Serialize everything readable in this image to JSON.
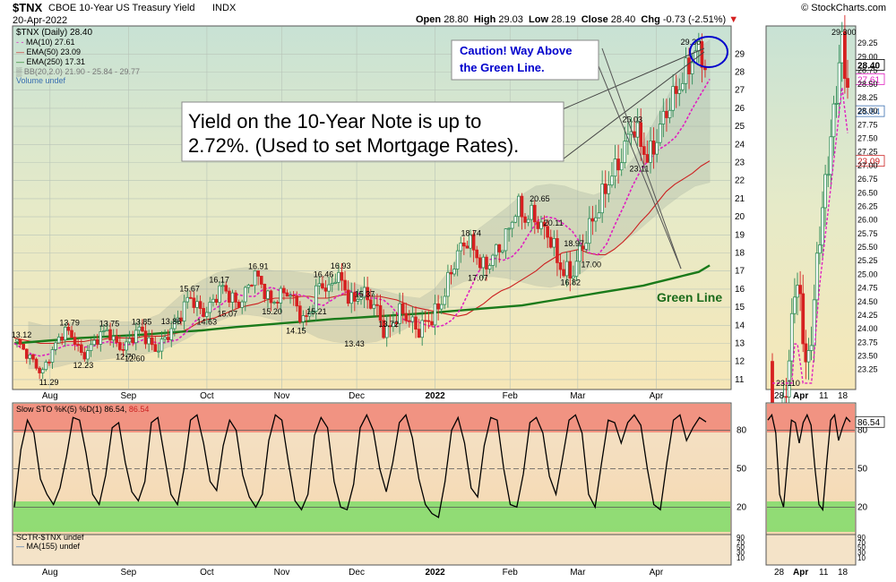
{
  "header": {
    "symbol": "$TNX",
    "name": "CBOE 10-Year US Treasury Yield",
    "exchange": "INDX",
    "copyright": "© StockCharts.com",
    "date": "20-Apr-2022",
    "open_label": "Open",
    "open": "28.80",
    "high_label": "High",
    "high": "29.03",
    "low_label": "Low",
    "low": "28.19",
    "close_label": "Close",
    "close": "28.40",
    "chg_label": "Chg",
    "chg": "-0.73 (-2.51%)"
  },
  "legend": {
    "main": "$TNX (Daily) 28.40",
    "ma10": "MA(10) 27.61",
    "ema50": "EMA(50) 23.09",
    "ema250": "EMA(250) 17.31",
    "bb": "BB(20,2.0) 21.90 - 25.84 - 29.77",
    "volume": "Volume undef"
  },
  "annotations": {
    "caution_line1": "Caution! Way Above",
    "caution_line2": "the Green Line.",
    "yield_line1": "Yield on the 10-Year Note is up to",
    "yield_line2": "2.72%. (Used to set Mortgage Rates).",
    "green_line": "Green Line"
  },
  "colors": {
    "candle_up": "#2e8b57",
    "candle_down": "#d62020",
    "ma10": "#e020c0",
    "ema50": "#cc2020",
    "ema250": "#1a7a1a",
    "annotation_blue": "#0000cc",
    "stoch_over": "#f08070",
    "stoch_under": "#7fdc6a",
    "panel_bg": "#f4e7c4"
  },
  "sto_panel": {
    "label_prefix": "Slow STO %K(5) %D(1) 86.54, ",
    "label_value": "86.54",
    "inset_value": "86.54"
  },
  "sctr_panel": {
    "label": "SCTR-$TNX undef",
    "ma_label": "MA(155) undef"
  },
  "price_tags": {
    "close": "28.40",
    "ma10": "27.61",
    "bb_mid": "25.84",
    "ema50": "23.09"
  },
  "chart_data": {
    "type": "candlestick",
    "ylim": [
      10.5,
      30.5
    ],
    "month_labels": [
      "Aug",
      "Sep",
      "Oct",
      "Nov",
      "Dec",
      "2022",
      "Feb",
      "Mar",
      "Apr"
    ],
    "y_ticks": [
      11,
      12,
      13,
      14,
      15,
      16,
      17,
      18,
      19,
      20,
      21,
      22,
      23,
      24,
      25,
      26,
      27,
      28,
      29
    ],
    "value_labels": [
      "13.12",
      "11.29",
      "13.79",
      "12.23",
      "13.75",
      "12.70",
      "13.85",
      "12.60",
      "13.86",
      "15.67",
      "14.63",
      "16.17",
      "15.07",
      "16.91",
      "15.20",
      "16.46",
      "14.15",
      "16.93",
      "15.21",
      "15.37",
      "13.43",
      "13.72",
      "18.74",
      "17.07",
      "20.65",
      "20.11",
      "18.97",
      "16.82",
      "17.00",
      "25.03",
      "23.11",
      "29.30"
    ],
    "price_path": [
      13.12,
      12.5,
      12.0,
      11.29,
      12.3,
      13.2,
      13.79,
      13.2,
      12.23,
      12.8,
      13.4,
      13.75,
      13.0,
      12.7,
      13.3,
      13.85,
      13.1,
      12.6,
      13.2,
      13.86,
      14.6,
      15.67,
      15.0,
      14.63,
      15.4,
      16.17,
      15.6,
      15.07,
      15.9,
      16.91,
      16.1,
      15.2,
      15.6,
      15.9,
      15.2,
      14.15,
      15.0,
      16.46,
      15.8,
      16.93,
      16.0,
      15.21,
      15.8,
      15.37,
      14.8,
      13.43,
      14.3,
      14.8,
      14.2,
      13.72,
      14.2,
      14.6,
      15.5,
      17.0,
      18.2,
      18.74,
      18.0,
      17.07,
      17.8,
      18.3,
      19.2,
      20.65,
      19.9,
      20.11,
      19.4,
      18.97,
      17.5,
      16.82,
      17.0,
      18.4,
      19.5,
      20.5,
      21.8,
      22.6,
      23.5,
      25.03,
      24.3,
      23.11,
      24.2,
      25.6,
      26.5,
      27.4,
      28.3,
      29.3,
      28.4
    ],
    "ema250": [
      13.0,
      13.05,
      13.1,
      13.15,
      13.2,
      13.25,
      13.3,
      13.33,
      13.36,
      13.4,
      13.43,
      13.46,
      13.5,
      13.55,
      13.6,
      13.64,
      13.68,
      13.72,
      13.78,
      13.84,
      13.9,
      13.95,
      14.0,
      14.05,
      14.1,
      14.15,
      14.2,
      14.25,
      14.3,
      14.35,
      14.38,
      14.42,
      14.46,
      14.5,
      14.54,
      14.58,
      14.62,
      14.66,
      14.7,
      14.75,
      14.8,
      14.85,
      14.9,
      14.95,
      15.0,
      15.05,
      15.1,
      15.2,
      15.3,
      15.4,
      15.5,
      15.6,
      15.7,
      15.8,
      15.9,
      16.0,
      16.1,
      16.2,
      16.35,
      16.5,
      16.65,
      16.8,
      16.95,
      17.31
    ],
    "ema50": [
      13.3,
      13.2,
      13.1,
      13.0,
      13.0,
      13.0,
      13.1,
      13.1,
      13.1,
      13.2,
      13.2,
      13.3,
      13.3,
      13.3,
      13.3,
      13.4,
      13.4,
      13.4,
      13.5,
      13.6,
      13.8,
      14.1,
      14.3,
      14.4,
      14.6,
      14.8,
      15.0,
      15.1,
      15.2,
      15.4,
      15.5,
      15.5,
      15.5,
      15.6,
      15.6,
      15.5,
      15.5,
      15.6,
      15.7,
      15.7,
      15.7,
      15.6,
      15.6,
      15.5,
      15.4,
      15.2,
      15.0,
      14.9,
      14.8,
      14.7,
      14.6,
      14.5,
      14.6,
      14.9,
      15.2,
      15.6,
      15.9,
      16.1,
      16.4,
      16.7,
      17.0,
      17.4,
      17.7,
      18.0,
      18.1,
      18.2,
      18.0,
      17.9,
      17.9,
      18.2,
      18.6,
      19.1,
      19.7,
      20.2,
      20.8,
      21.4,
      21.8,
      22.1,
      22.4,
      22.8,
      23.09
    ],
    "ma10": [
      13.0,
      12.7,
      12.4,
      12.3,
      12.4,
      12.7,
      12.9,
      12.9,
      12.8,
      12.8,
      13.0,
      13.1,
      13.0,
      12.9,
      13.0,
      13.2,
      13.1,
      13.0,
      13.1,
      13.2,
      13.6,
      14.2,
      14.6,
      14.8,
      15.1,
      15.5,
      15.7,
      15.6,
      15.6,
      16.0,
      16.1,
      15.9,
      15.7,
      15.7,
      15.6,
      15.2,
      15.1,
      15.4,
      15.7,
      15.9,
      15.8,
      15.5,
      15.5,
      15.4,
      15.0,
      14.4,
      14.2,
      14.2,
      14.0,
      13.9,
      14.0,
      14.3,
      14.9,
      15.9,
      16.9,
      17.6,
      17.7,
      17.6,
      17.8,
      18.3,
      19.1,
      19.8,
      20.0,
      19.9,
      19.6,
      19.2,
      18.5,
      18.0,
      17.9,
      18.5,
      19.6,
      20.6,
      21.7,
      22.6,
      23.2,
      23.7,
      24.0,
      24.4,
      25.1,
      26.0,
      26.8,
      27.61
    ],
    "bb_upper": [
      14.2,
      14.0,
      14.0,
      14.2,
      14.3,
      14.3,
      14.2,
      14.2,
      14.3,
      14.6,
      15.3,
      16.0,
      16.5,
      16.9,
      17.1,
      17.2,
      17.1,
      17.0,
      17.0,
      16.9,
      16.8,
      16.6,
      16.4,
      16.2,
      16.0,
      15.8,
      15.6,
      15.5,
      16.0,
      17.0,
      18.3,
      19.3,
      19.9,
      20.5,
      21.2,
      21.7,
      21.8,
      21.7,
      21.4,
      21.2,
      21.5,
      22.5,
      23.5,
      25.0,
      26.5,
      28.0,
      29.2,
      29.77
    ],
    "bb_lower": [
      11.6,
      11.6,
      11.7,
      11.9,
      12.0,
      12.1,
      12.2,
      12.3,
      12.4,
      12.6,
      12.9,
      13.3,
      13.8,
      14.2,
      14.5,
      14.6,
      14.5,
      14.3,
      14.0,
      13.7,
      13.3,
      13.1,
      13.0,
      13.0,
      13.1,
      13.4,
      13.8,
      14.4,
      15.2,
      16.0,
      16.4,
      16.6,
      16.7,
      16.6,
      16.4,
      16.2,
      16.1,
      16.3,
      16.8,
      17.4,
      18.0,
      18.6,
      19.2,
      19.9,
      20.6,
      21.2,
      21.7,
      21.9
    ],
    "stoch_k": [
      20,
      65,
      88,
      78,
      42,
      30,
      22,
      35,
      60,
      90,
      88,
      62,
      30,
      22,
      45,
      82,
      86,
      55,
      32,
      25,
      40,
      86,
      90,
      60,
      30,
      22,
      50,
      88,
      92,
      70,
      40,
      33,
      68,
      88,
      80,
      45,
      28,
      20,
      30,
      72,
      92,
      88,
      55,
      25,
      18,
      30,
      76,
      90,
      82,
      40,
      20,
      18,
      38,
      82,
      92,
      80,
      50,
      32,
      55,
      86,
      92,
      74,
      42,
      22,
      15,
      12,
      40,
      80,
      90,
      70,
      35,
      28,
      68,
      90,
      88,
      50,
      22,
      20,
      46,
      86,
      90,
      78,
      44,
      30,
      58,
      88,
      92,
      78,
      30,
      20,
      55,
      88,
      86,
      70,
      86,
      92,
      84,
      50,
      22,
      18,
      55,
      88,
      92,
      72,
      82,
      90,
      86.54
    ],
    "stoch_ylim": [
      0,
      100
    ],
    "stoch_ticks": [
      20,
      50,
      80
    ]
  }
}
